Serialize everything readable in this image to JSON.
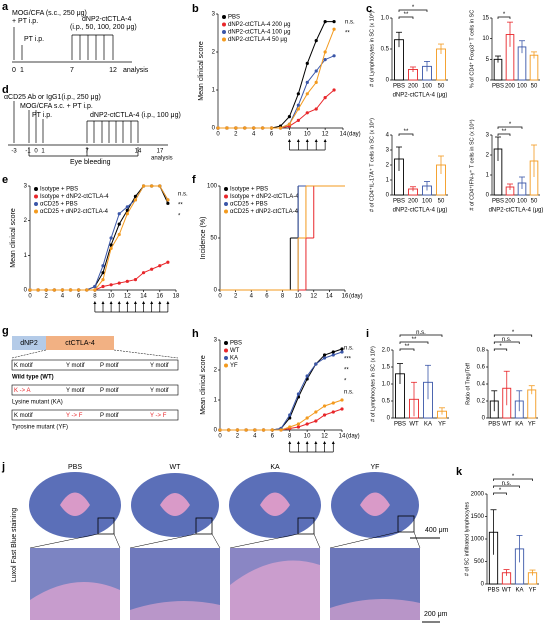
{
  "chart_data": [
    {
      "panel": "b",
      "type": "line",
      "ylabel": "Mean clinical score",
      "xlabel": "(day)",
      "x": [
        0,
        1,
        2,
        3,
        4,
        5,
        6,
        7,
        8,
        9,
        10,
        11,
        12,
        13
      ],
      "xlim": [
        0,
        14
      ],
      "xticks": [
        0,
        2,
        4,
        6,
        8,
        10,
        12,
        14
      ],
      "ylim": [
        0,
        3
      ],
      "yticks": [
        0,
        1,
        2,
        3
      ],
      "injection_days": [
        8,
        9,
        10,
        11,
        12
      ],
      "annotations": [
        "n.s.",
        "**"
      ],
      "series": [
        {
          "name": "PBS",
          "color": "#000000",
          "values": [
            0,
            0,
            0,
            0,
            0,
            0,
            0,
            0.05,
            0.3,
            0.9,
            1.7,
            2.3,
            2.8,
            2.8
          ]
        },
        {
          "name": "dNP2-ctCTLA-4 200 μg",
          "color": "#e8262a",
          "values": [
            0,
            0,
            0,
            0,
            0,
            0,
            0,
            0,
            0.05,
            0.2,
            0.4,
            0.5,
            0.8,
            1.0
          ]
        },
        {
          "name": "dNP2-ctCTLA-4 100 μg",
          "color": "#3a56a8",
          "values": [
            0,
            0,
            0,
            0,
            0,
            0,
            0,
            0,
            0.1,
            0.6,
            1.2,
            1.5,
            1.8,
            1.9
          ]
        },
        {
          "name": "dNP2-ctCTLA-4 50 μg",
          "color": "#f39a1e",
          "values": [
            0,
            0,
            0,
            0,
            0,
            0,
            0,
            0,
            0.1,
            0.5,
            0.9,
            1.2,
            2.0,
            2.6
          ]
        }
      ]
    },
    {
      "panel": "c",
      "type": "bar",
      "ylabel": "# of Lymphocytes in SC (x 10⁶)",
      "xlabel": "dNP2-ctCTLA-4 (μg)",
      "categories": [
        "PBS",
        "200",
        "100",
        "50"
      ],
      "values": [
        0.65,
        0.17,
        0.22,
        0.5
      ],
      "errors": [
        0.12,
        0.04,
        0.08,
        0.08
      ],
      "colors": [
        "#000000",
        "#e8262a",
        "#3a56a8",
        "#f39a1e"
      ],
      "ylim": [
        0,
        1
      ],
      "yticks": [
        0,
        0.5,
        {
          "value": 1,
          "label": "1.0"
        }
      ],
      "annotations": [
        "**",
        "*"
      ]
    },
    {
      "type": "bar",
      "ylabel": "% of CD4⁺ Foxp3⁺ T cells in SC",
      "categories": [
        "PBS",
        "200",
        "100",
        "50"
      ],
      "values": [
        5,
        11,
        8,
        6
      ],
      "errors": [
        0.8,
        3,
        1.5,
        0.8
      ],
      "colors": [
        "#000000",
        "#e8262a",
        "#3a56a8",
        "#f39a1e"
      ],
      "ylim": [
        0,
        15
      ],
      "yticks": [
        0,
        5,
        10,
        15
      ],
      "annotations": [
        "*"
      ]
    },
    {
      "type": "bar",
      "ylabel": "# of CD4⁺IL-17A⁺ T cells in SC (x 10⁴)",
      "xlabel": "dNP2-ctCTLA-4 (μg)",
      "categories": [
        "PBS",
        "200",
        "100",
        "50"
      ],
      "values": [
        2.4,
        0.4,
        0.6,
        2.0
      ],
      "errors": [
        0.8,
        0.15,
        0.3,
        0.6
      ],
      "colors": [
        "#000000",
        "#e8262a",
        "#3a56a8",
        "#f39a1e"
      ],
      "ylim": [
        0,
        4
      ],
      "yticks": [
        0,
        1,
        2,
        3,
        4
      ],
      "annotations": [
        "**"
      ]
    },
    {
      "type": "bar",
      "ylabel": "# of CD4⁺IFN-γ⁺ T cells in SC (x 10⁴)",
      "xlabel": "dNP2-ctCTLA-4 (μg)",
      "categories": [
        "PBS",
        "200",
        "100",
        "50"
      ],
      "values": [
        2.3,
        0.4,
        0.6,
        1.7
      ],
      "errors": [
        0.6,
        0.15,
        0.3,
        0.8
      ],
      "colors": [
        "#000000",
        "#e8262a",
        "#3a56a8",
        "#f39a1e"
      ],
      "ylim": [
        0,
        3
      ],
      "yticks": [
        0,
        1,
        2,
        3
      ],
      "annotations": [
        "**",
        "*"
      ]
    },
    {
      "panel": "e",
      "type": "line",
      "ylabel": "Mean clinical score",
      "x": [
        0,
        1,
        2,
        3,
        4,
        5,
        6,
        7,
        8,
        9,
        10,
        11,
        12,
        13,
        14,
        15,
        16,
        17
      ],
      "xlim": [
        0,
        18
      ],
      "xticks": [
        0,
        2,
        4,
        6,
        8,
        10,
        12,
        14,
        16,
        18
      ],
      "ylim": [
        0,
        3
      ],
      "yticks": [
        0,
        1,
        2,
        3
      ],
      "injection_days": [
        8,
        9,
        10,
        11,
        12,
        13,
        14,
        15,
        16,
        17
      ],
      "annotations": [
        "n.s.",
        "**",
        "*"
      ],
      "series": [
        {
          "name": "Isotype + PBS",
          "color": "#000000",
          "values": [
            0,
            0,
            0,
            0,
            0,
            0,
            0,
            0,
            0.1,
            0.5,
            1.3,
            1.9,
            2.3,
            2.7,
            3,
            3,
            3,
            2.5
          ]
        },
        {
          "name": "Isotype + dNP2-ctCTLA-4",
          "color": "#e8262a",
          "values": [
            0,
            0,
            0,
            0,
            0,
            0,
            0,
            0,
            0,
            0.1,
            0.15,
            0.2,
            0.25,
            0.3,
            0.5,
            0.6,
            0.7,
            0.8
          ]
        },
        {
          "name": "αCD25 + PBS",
          "color": "#3a56a8",
          "values": [
            0,
            0,
            0,
            0,
            0,
            0,
            0,
            0,
            0.1,
            0.7,
            1.5,
            2.2,
            2.4,
            2.6,
            3,
            3,
            3,
            2.6
          ]
        },
        {
          "name": "αCD25 + dNP2-ctCTLA-4",
          "color": "#f39a1e",
          "values": [
            0,
            0,
            0,
            0,
            0,
            0,
            0,
            0,
            0,
            0.3,
            1.2,
            1.6,
            2.2,
            2.6,
            3,
            3,
            3,
            2.6
          ]
        }
      ]
    },
    {
      "panel": "f",
      "type": "step",
      "ylabel": "Incidence (%)",
      "xlabel": "(day)",
      "x": [
        0,
        9,
        10,
        11,
        12,
        16
      ],
      "xlim": [
        0,
        16
      ],
      "xticks": [
        0,
        2,
        4,
        6,
        8,
        10,
        12,
        14,
        16
      ],
      "ylim": [
        0,
        100
      ],
      "yticks": [
        0,
        50,
        100
      ],
      "series": [
        {
          "name": "Isotype + PBS",
          "color": "#000000",
          "values": [
            0,
            50,
            100,
            100,
            100,
            100
          ]
        },
        {
          "name": "Isotype + dNP2-ctCTLA-4",
          "color": "#e8262a",
          "values": [
            0,
            0,
            0,
            50,
            100,
            100
          ]
        },
        {
          "name": "αCD25 + PBS",
          "color": "#3a56a8",
          "values": [
            0,
            0,
            100,
            100,
            100,
            100
          ]
        },
        {
          "name": "αCD25 + dNP2-ctCTLA-4",
          "color": "#f39a1e",
          "values": [
            0,
            0,
            50,
            100,
            100,
            100
          ]
        }
      ]
    },
    {
      "panel": "h",
      "type": "line",
      "ylabel": "Mean clinical score",
      "xlabel": "(day)",
      "x": [
        0,
        1,
        2,
        3,
        4,
        5,
        6,
        7,
        8,
        9,
        10,
        11,
        12,
        13,
        14
      ],
      "xlim": [
        0,
        14
      ],
      "xticks": [
        0,
        2,
        4,
        6,
        8,
        10,
        12,
        14
      ],
      "ylim": [
        0,
        3
      ],
      "yticks": [
        0,
        1,
        2,
        3
      ],
      "injection_days": [
        8,
        9,
        10,
        11,
        12,
        13
      ],
      "annotations": [
        "n.s.",
        "***",
        "**",
        "*",
        "n.s."
      ],
      "series": [
        {
          "name": "PBS",
          "color": "#000000",
          "values": [
            0,
            0,
            0,
            0,
            0,
            0,
            0,
            0.05,
            0.4,
            1.1,
            1.7,
            2.2,
            2.5,
            2.6,
            2.7
          ]
        },
        {
          "name": "WT",
          "color": "#e8262a",
          "values": [
            0,
            0,
            0,
            0,
            0,
            0,
            0,
            0,
            0.05,
            0.1,
            0.2,
            0.3,
            0.5,
            0.6,
            0.7
          ]
        },
        {
          "name": "KA",
          "color": "#3a56a8",
          "values": [
            0,
            0,
            0,
            0,
            0,
            0,
            0,
            0.05,
            0.5,
            1.2,
            1.8,
            2.2,
            2.4,
            2.5,
            2.6
          ]
        },
        {
          "name": "YF",
          "color": "#f39a1e",
          "values": [
            0,
            0,
            0,
            0,
            0,
            0,
            0,
            0,
            0.1,
            0.2,
            0.4,
            0.6,
            0.8,
            0.9,
            1.0
          ]
        }
      ]
    },
    {
      "panel": "i",
      "type": "bar",
      "ylabel": "# of Lymphocytes in SC (x 10⁶)",
      "categories": [
        "PBS",
        "WT",
        "KA",
        "YF"
      ],
      "values": [
        1.3,
        0.55,
        1.05,
        0.2
      ],
      "errors": [
        0.3,
        0.5,
        0.5,
        0.1
      ],
      "colors": [
        "#000000",
        "#e8262a",
        "#3a56a8",
        "#f39a1e"
      ],
      "ylim": [
        0,
        2
      ],
      "yticks": [
        0,
        0.5,
        {
          "value": 1,
          "label": "1.0"
        },
        1.5,
        {
          "value": 2,
          "label": "2.0"
        }
      ],
      "annotations": [
        "**",
        "**",
        "n.s."
      ]
    },
    {
      "type": "bar",
      "ylabel": "Ratio of Treg/Teff",
      "categories": [
        "PBS",
        "WT",
        "KA",
        "YF"
      ],
      "values": [
        0.2,
        0.35,
        0.2,
        0.33
      ],
      "errors": [
        0.12,
        0.2,
        0.12,
        0.05
      ],
      "colors": [
        "#000000",
        "#e8262a",
        "#3a56a8",
        "#f39a1e"
      ],
      "ylim": [
        0,
        0.8
      ],
      "yticks": [
        0,
        0.2,
        0.4,
        0.6,
        0.8
      ],
      "annotations": [
        "*",
        "n.s.",
        "*"
      ]
    },
    {
      "panel": "k",
      "type": "bar",
      "ylabel": "# of SC infiltrated lymphocytes",
      "categories": [
        "PBS",
        "WT",
        "KA",
        "YF"
      ],
      "values": [
        1150,
        250,
        780,
        250
      ],
      "errors": [
        500,
        70,
        300,
        60
      ],
      "colors": [
        "#000000",
        "#e8262a",
        "#3a56a8",
        "#f39a1e"
      ],
      "ylim": [
        0,
        2000
      ],
      "yticks": [
        0,
        500,
        1000,
        1500,
        2000
      ],
      "annotations": [
        "*",
        "n.s.",
        "*"
      ]
    }
  ],
  "diagrams": {
    "a": {
      "panel": "a",
      "texts": [
        "MOG/CFA (s.c., 250 μg)",
        "+ PT i.p.",
        "PT i.p.",
        "dNP2-ctCTLA-4",
        "(i.p., 50, 100, 200 μg)",
        "0",
        "1",
        "7",
        "12",
        "analysis"
      ]
    },
    "d": {
      "panel": "d",
      "texts": [
        "αCD25 Ab or IgG1(i.p., 250 μg)",
        "MOG/CFA s.c. + PT i.p.",
        "PT i.p.",
        "dNP2-ctCTLA-4 (i.p., 100 μg)",
        "-3",
        "-1",
        "0",
        "1",
        "7",
        "14",
        "17",
        "analysis",
        "Eye bleeding"
      ]
    },
    "g": {
      "panel": "g",
      "texts": [
        "dNP2",
        "ctCTLA-4",
        "K motif",
        "Y motif",
        "P motif",
        "Y motif",
        "Wild type (WT)",
        "K -> A",
        "Y motif",
        "P motif",
        "Y motif",
        "Lysine mutant (KA)",
        "K motif",
        "Y -> F",
        "P motif",
        "Y -> F",
        "Tyrosine mutant (YF)"
      ]
    },
    "j": {
      "panel": "j",
      "texts": [
        "PBS",
        "WT",
        "KA",
        "YF",
        "Luxol Fast Blue staining",
        "400 μm",
        "200 μm"
      ]
    }
  }
}
